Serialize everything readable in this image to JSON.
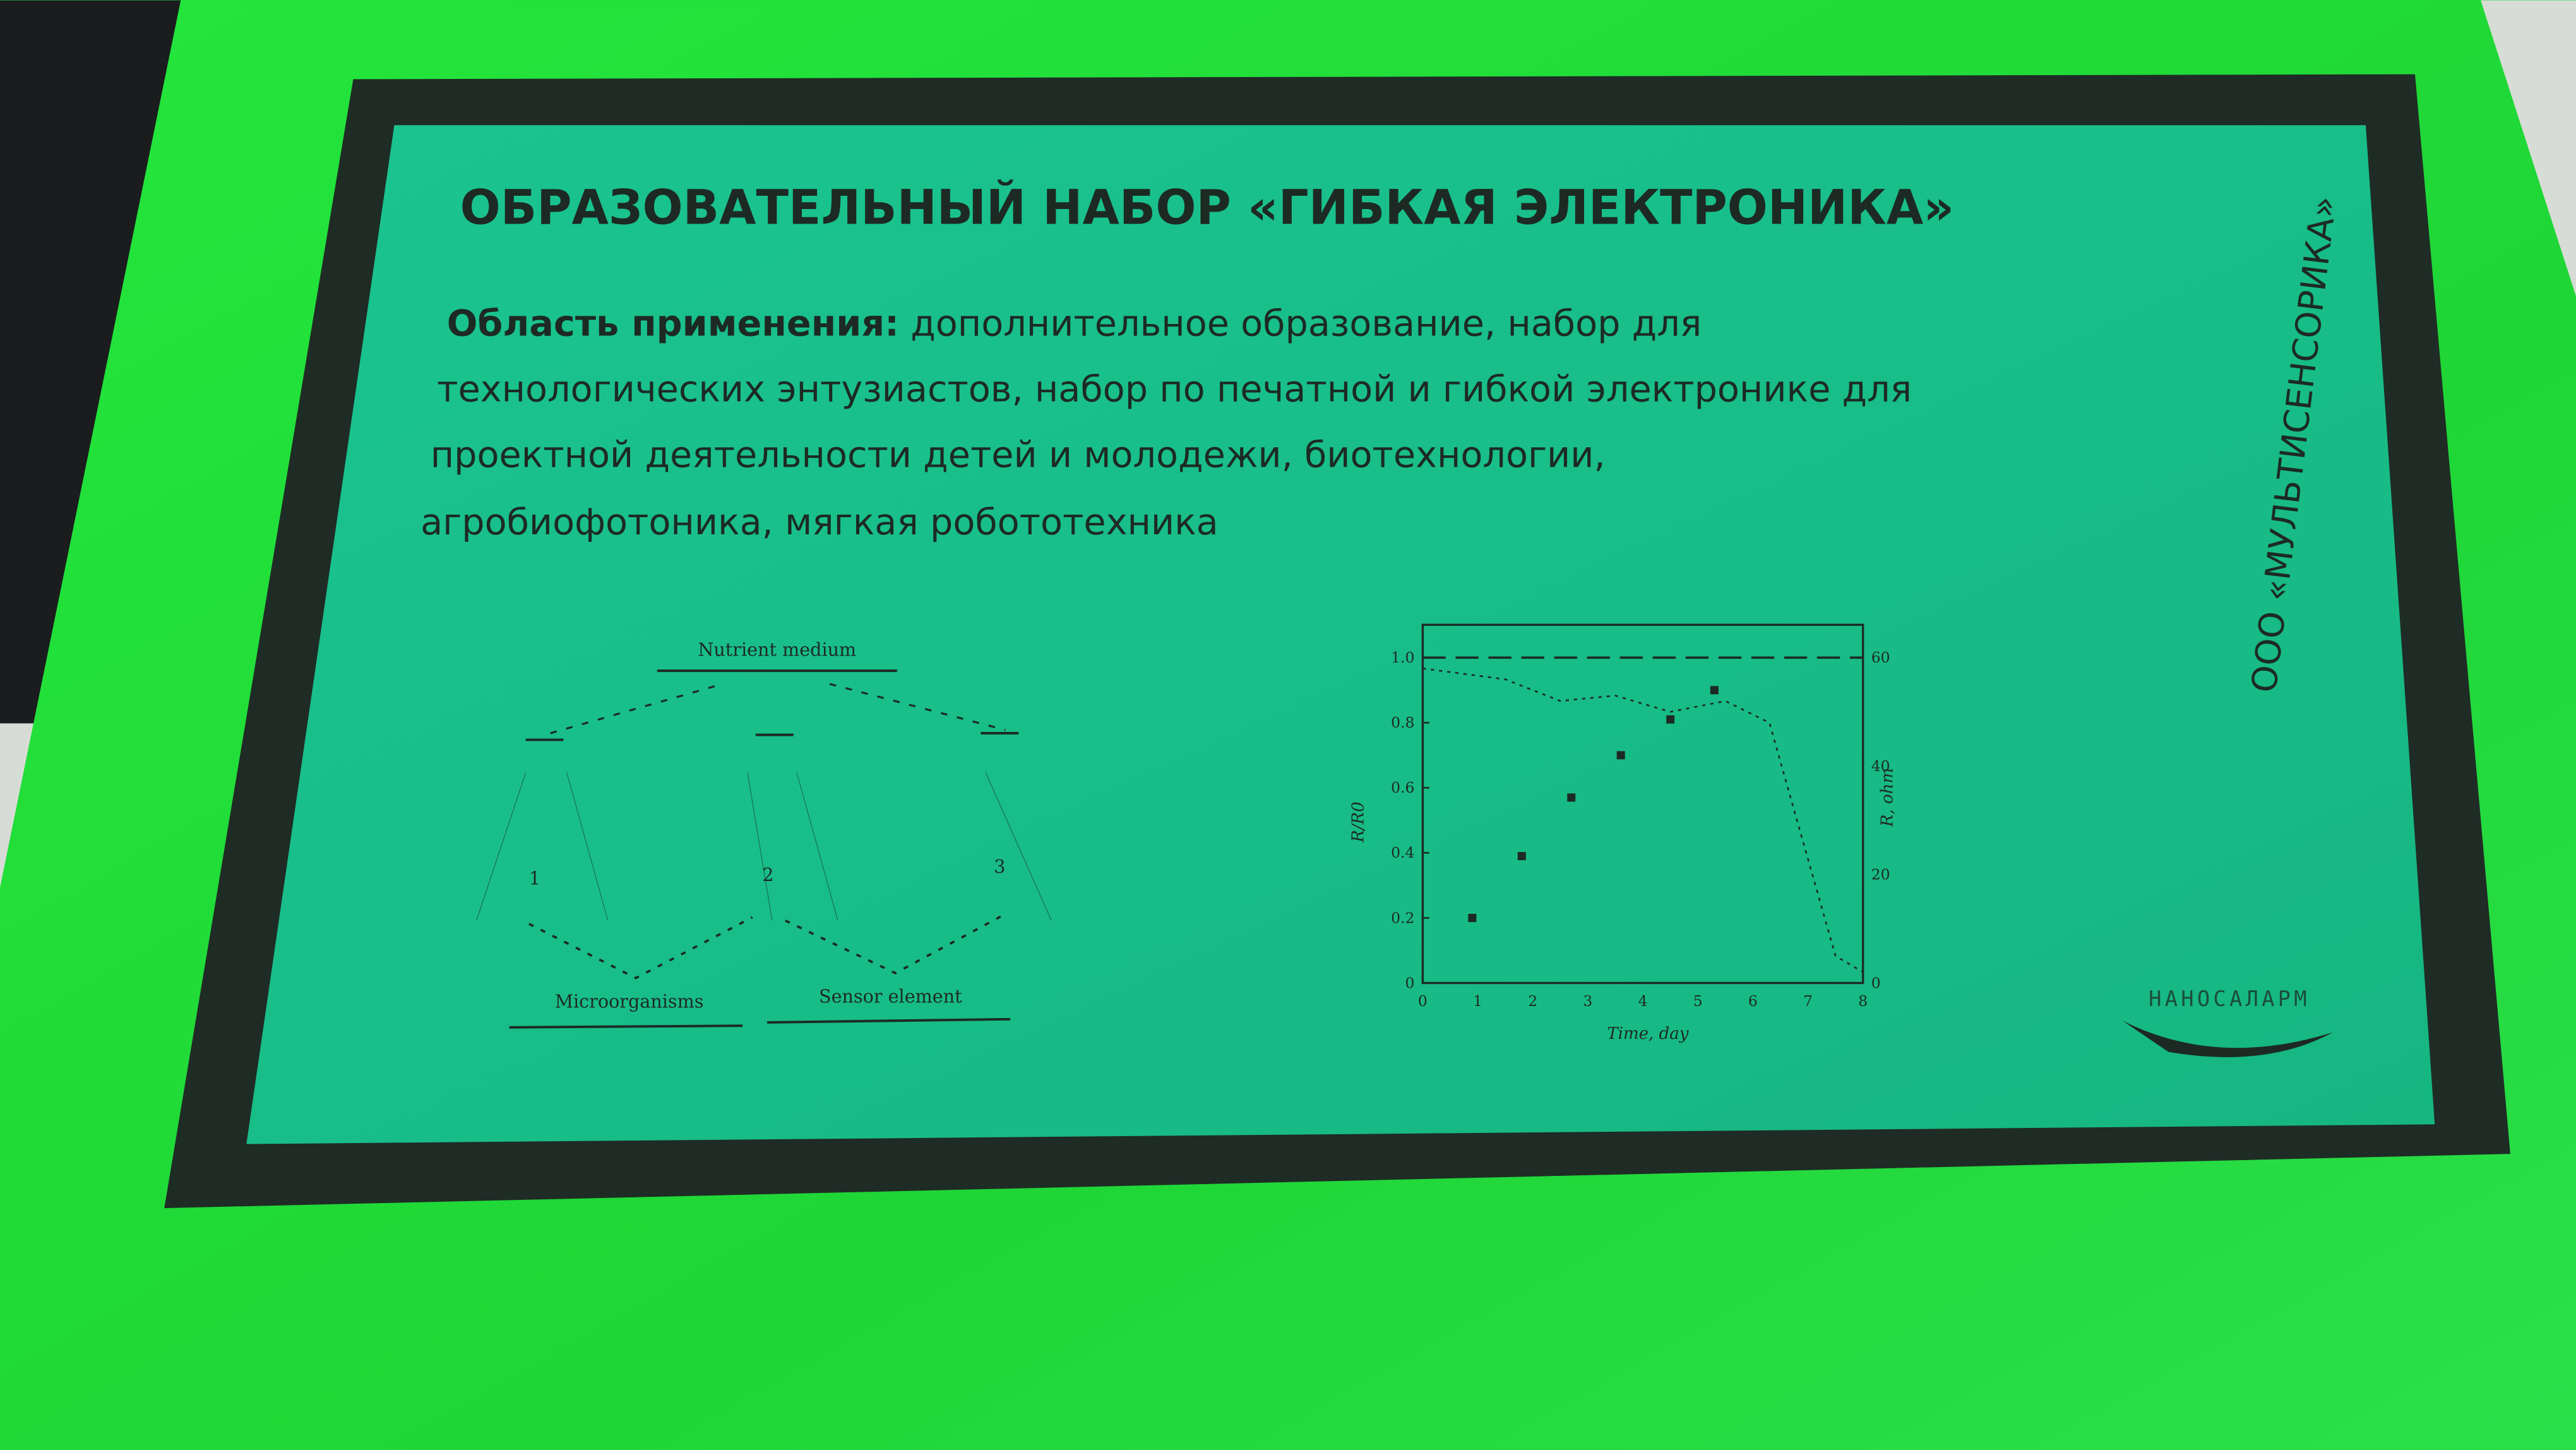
{
  "sign": {
    "title": "ОБРАЗОВАТЕЛЬНЫЙ НАБОР «ГИБКАЯ ЭЛЕКТРОНИКА»",
    "application_label": "Область применения:",
    "application_lines": [
      " дополнительное образование, набор для",
      "технологических энтузиастов, набор по печатной и гибкой электронике для",
      "проектной деятельности детей и молодежи, биотехнологии,",
      "агробиофотоника, мягкая робототехника"
    ],
    "company": "ООО «МУЛЬТИСЕНСОРИКА»",
    "logo_text": "НАНОСАЛАРМ"
  },
  "diagram": {
    "top_box": "Nutrient medium",
    "bottom_left_box": "Microorganisms",
    "bottom_right_box": "Sensor element",
    "numbers": [
      "1",
      "2",
      "3"
    ]
  },
  "chart_data": {
    "type": "scatter",
    "xlabel": "Time, day",
    "ylabel": "R/R0",
    "y2label": "R, ohm",
    "xlim": [
      0,
      8
    ],
    "ylim": [
      0,
      1.0
    ],
    "y2lim": [
      0,
      60
    ],
    "x_ticks": [
      "0",
      "1",
      "2",
      "3",
      "4",
      "5",
      "6",
      "7",
      "8"
    ],
    "y_ticks": [
      "0",
      "0.2",
      "0.4",
      "0.6",
      "0.8",
      "1.0"
    ],
    "y2_ticks": [
      "0",
      "20",
      "40",
      "60"
    ],
    "series": [
      {
        "marker": "square",
        "x": [
          0.9,
          1.8,
          2.7,
          3.6,
          4.5,
          5.3
        ],
        "y": [
          0.2,
          0.39,
          0.57,
          0.7,
          0.81,
          0.9
        ]
      },
      {
        "marker": "dashed-line",
        "x": [
          0,
          8
        ],
        "y": [
          1.0,
          1.0
        ]
      },
      {
        "marker": "dotted-line",
        "axis": "right",
        "x": [
          0,
          1.5,
          2.5,
          3.5,
          4.5,
          5.5,
          6.3,
          6.8,
          7.5,
          8
        ],
        "y": [
          58,
          56,
          52,
          53,
          50,
          52,
          48,
          30,
          5,
          2
        ]
      }
    ],
    "grid": false
  },
  "colors": {
    "acrylic": "#1fd83a",
    "frame": "#1f2b25",
    "screen": "#19c08a",
    "ink": "#1d2a24"
  }
}
